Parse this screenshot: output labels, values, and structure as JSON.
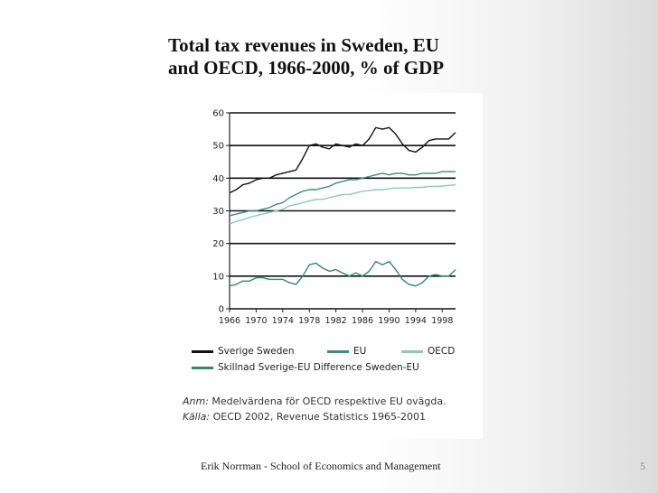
{
  "slide": {
    "title_line1": "Total tax revenues in Sweden, EU",
    "title_line2": "and OECD, 1966-2000, % of GDP",
    "footer": "Erik Norrman - School of Economics and Management",
    "page_number": "5"
  },
  "notes": {
    "anm_label": "Anm:",
    "anm_text": " Medelvärdena för OECD respektive EU ovägda.",
    "kalla_label": "Källa:",
    "kalla_text": " OECD 2002, Revenue Statistics 1965-2001"
  },
  "chart_data": {
    "type": "line",
    "xlim": [
      1966,
      2000
    ],
    "ylim": [
      0,
      60
    ],
    "yticks": [
      0,
      10,
      20,
      30,
      40,
      50,
      60
    ],
    "xticks": [
      1966,
      1970,
      1974,
      1978,
      1982,
      1986,
      1990,
      1994,
      1998
    ],
    "xtick_labels": [
      "1966",
      "1970",
      "1974",
      "1978",
      "1982",
      "1986",
      "1990",
      "1994",
      "1998"
    ],
    "ytick_labels": [
      "0",
      "10",
      "20",
      "30",
      "40",
      "50",
      "60"
    ],
    "grid": "horizontal",
    "legend_position": "bottom",
    "x": [
      1966,
      1967,
      1968,
      1969,
      1970,
      1971,
      1972,
      1973,
      1974,
      1975,
      1976,
      1977,
      1978,
      1979,
      1980,
      1981,
      1982,
      1983,
      1984,
      1985,
      1986,
      1987,
      1988,
      1989,
      1990,
      1991,
      1992,
      1993,
      1994,
      1995,
      1996,
      1997,
      1998,
      1999,
      2000
    ],
    "series": [
      {
        "name": "Sverige  Sweden",
        "color": "#111111",
        "values": [
          35.5,
          36.5,
          38,
          38.5,
          39.5,
          40,
          40,
          41,
          41.5,
          42,
          42.5,
          46,
          50,
          50.5,
          49.5,
          49,
          50.5,
          50,
          49.5,
          50.5,
          50,
          52,
          55.5,
          55,
          55.5,
          53.5,
          50.5,
          48.5,
          48,
          49.5,
          51.5,
          52,
          52,
          52,
          54
        ]
      },
      {
        "name": "EU",
        "color": "#3c8d79",
        "values": [
          28.5,
          29,
          29.5,
          30,
          30,
          30.5,
          31,
          32,
          32.5,
          34,
          35,
          36,
          36.5,
          36.5,
          37,
          37.5,
          38.5,
          39,
          39.5,
          39.5,
          40,
          40.5,
          41,
          41.5,
          41,
          41.5,
          41.5,
          41,
          41,
          41.5,
          41.5,
          41.5,
          42,
          42,
          42
        ]
      },
      {
        "name": "OECD",
        "color": "#8fc7b8",
        "values": [
          26,
          26.8,
          27.3,
          28,
          28.5,
          29,
          29.5,
          30,
          30.5,
          31.5,
          32,
          32.5,
          33,
          33.5,
          33.5,
          34,
          34.5,
          35,
          35,
          35.5,
          36,
          36.2,
          36.5,
          36.5,
          36.8,
          37,
          37,
          37,
          37.2,
          37.2,
          37.5,
          37.5,
          37.6,
          37.8,
          38
        ]
      },
      {
        "name": "Skillnad Sverige-EU  Difference Sweden-EU",
        "color": "#2f8a6e",
        "values": [
          7,
          7.5,
          8.5,
          8.5,
          9.5,
          9.5,
          9,
          9,
          9,
          8,
          7.5,
          10,
          13.5,
          14,
          12.5,
          11.5,
          12,
          11,
          10,
          11,
          10,
          11.5,
          14.5,
          13.5,
          14.5,
          12,
          9,
          7.5,
          7,
          8,
          10,
          10.5,
          10,
          10,
          12
        ]
      }
    ]
  }
}
